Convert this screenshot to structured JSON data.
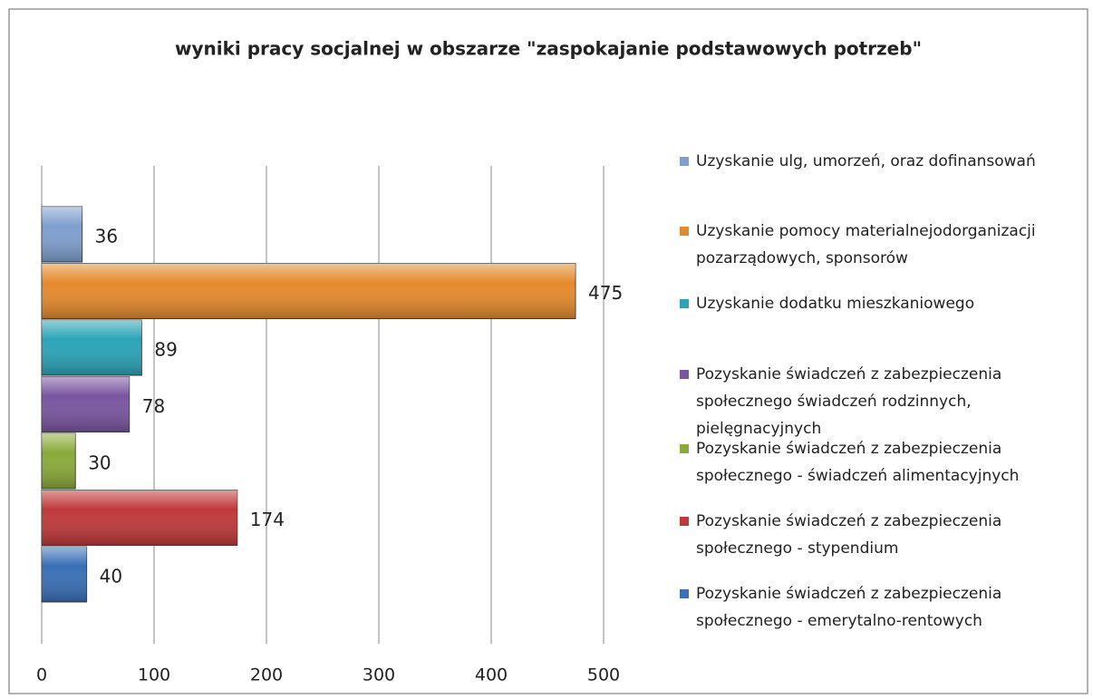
{
  "chart_data": {
    "type": "bar",
    "orientation": "horizontal",
    "title": "wyniki pracy socjalnej w obszarze \"zaspokajanie podstawowych potrzeb\"",
    "series": [
      {
        "name": "Uzyskanie ulg, umorzeń, oraz dofinansowań",
        "color": "#7f9fcf",
        "values": [
          36
        ]
      },
      {
        "name": "Uzyskanie pomocy materialnejodorganizacji pozarządowych, sponsorów",
        "color": "#e58a2c",
        "values": [
          475
        ]
      },
      {
        "name": "Uzyskanie dodatku mieszkaniowego",
        "color": "#2aa4b8",
        "values": [
          89
        ]
      },
      {
        "name": "Pozyskanie świadczeń z zabezpieczenia społecznego  świadczeń rodzinnych, pielęgnacyjnych",
        "color": "#7a55a0",
        "values": [
          78
        ]
      },
      {
        "name": "Pozyskanie świadczeń z zabezpieczenia społecznego - świadczeń alimentacyjnych",
        "color": "#8aaa3a",
        "values": [
          30
        ]
      },
      {
        "name": "Pozyskanie świadczeń z zabezpieczenia społecznego - stypendium",
        "color": "#c0393a",
        "values": [
          174
        ]
      },
      {
        "name": "Pozyskanie świadczeń z zabezpieczenia społecznego - emerytalno-rentowych",
        "color": "#3a6fb7",
        "values": [
          40
        ]
      }
    ],
    "xlim": [
      0,
      500
    ],
    "xticks": [
      0,
      100,
      200,
      300,
      400,
      500
    ],
    "grid": true,
    "legend": "right"
  }
}
